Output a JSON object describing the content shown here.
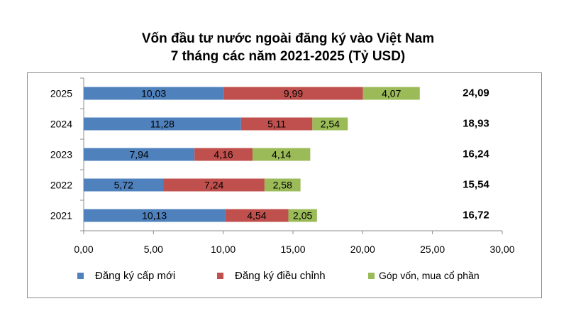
{
  "chart_data": {
    "type": "bar",
    "orientation": "horizontal",
    "stacked": true,
    "title": "Vốn đầu tư nước ngoài đăng ký vào Việt Nam",
    "subtitle": "7 tháng các năm 2021-2025 (Tỷ USD)",
    "categories": [
      "2025",
      "2024",
      "2023",
      "2022",
      "2021"
    ],
    "series": [
      {
        "name": "Đăng  ký cấp mới",
        "color": "#4f81bd",
        "values": [
          10.03,
          11.28,
          7.94,
          5.72,
          10.13
        ],
        "labels": [
          "10,03",
          "11,28",
          "7,94",
          "5,72",
          "10,13"
        ]
      },
      {
        "name": "Đăng  ký điều chỉnh",
        "color": "#c0504d",
        "values": [
          9.99,
          5.11,
          4.16,
          7.24,
          4.54
        ],
        "labels": [
          "9,99",
          "5,11",
          "4,16",
          "7,24",
          "4,54"
        ]
      },
      {
        "name": "Góp vốn, mua cổ phần",
        "color": "#9bbb59",
        "values": [
          4.07,
          2.54,
          4.14,
          2.58,
          2.05
        ],
        "labels": [
          "4,07",
          "2,54",
          "4,14",
          "2,58",
          "2,05"
        ]
      }
    ],
    "totals": [
      "24,09",
      "18,93",
      "16,24",
      "15,54",
      "16,72"
    ],
    "xlim": [
      0,
      30
    ],
    "xticks": [
      0,
      5,
      10,
      15,
      20,
      25,
      30
    ],
    "xtick_labels": [
      "0,00",
      "5,00",
      "10,00",
      "15,00",
      "20,00",
      "25,00",
      "30,00"
    ],
    "grid": false,
    "legend_position": "bottom"
  }
}
